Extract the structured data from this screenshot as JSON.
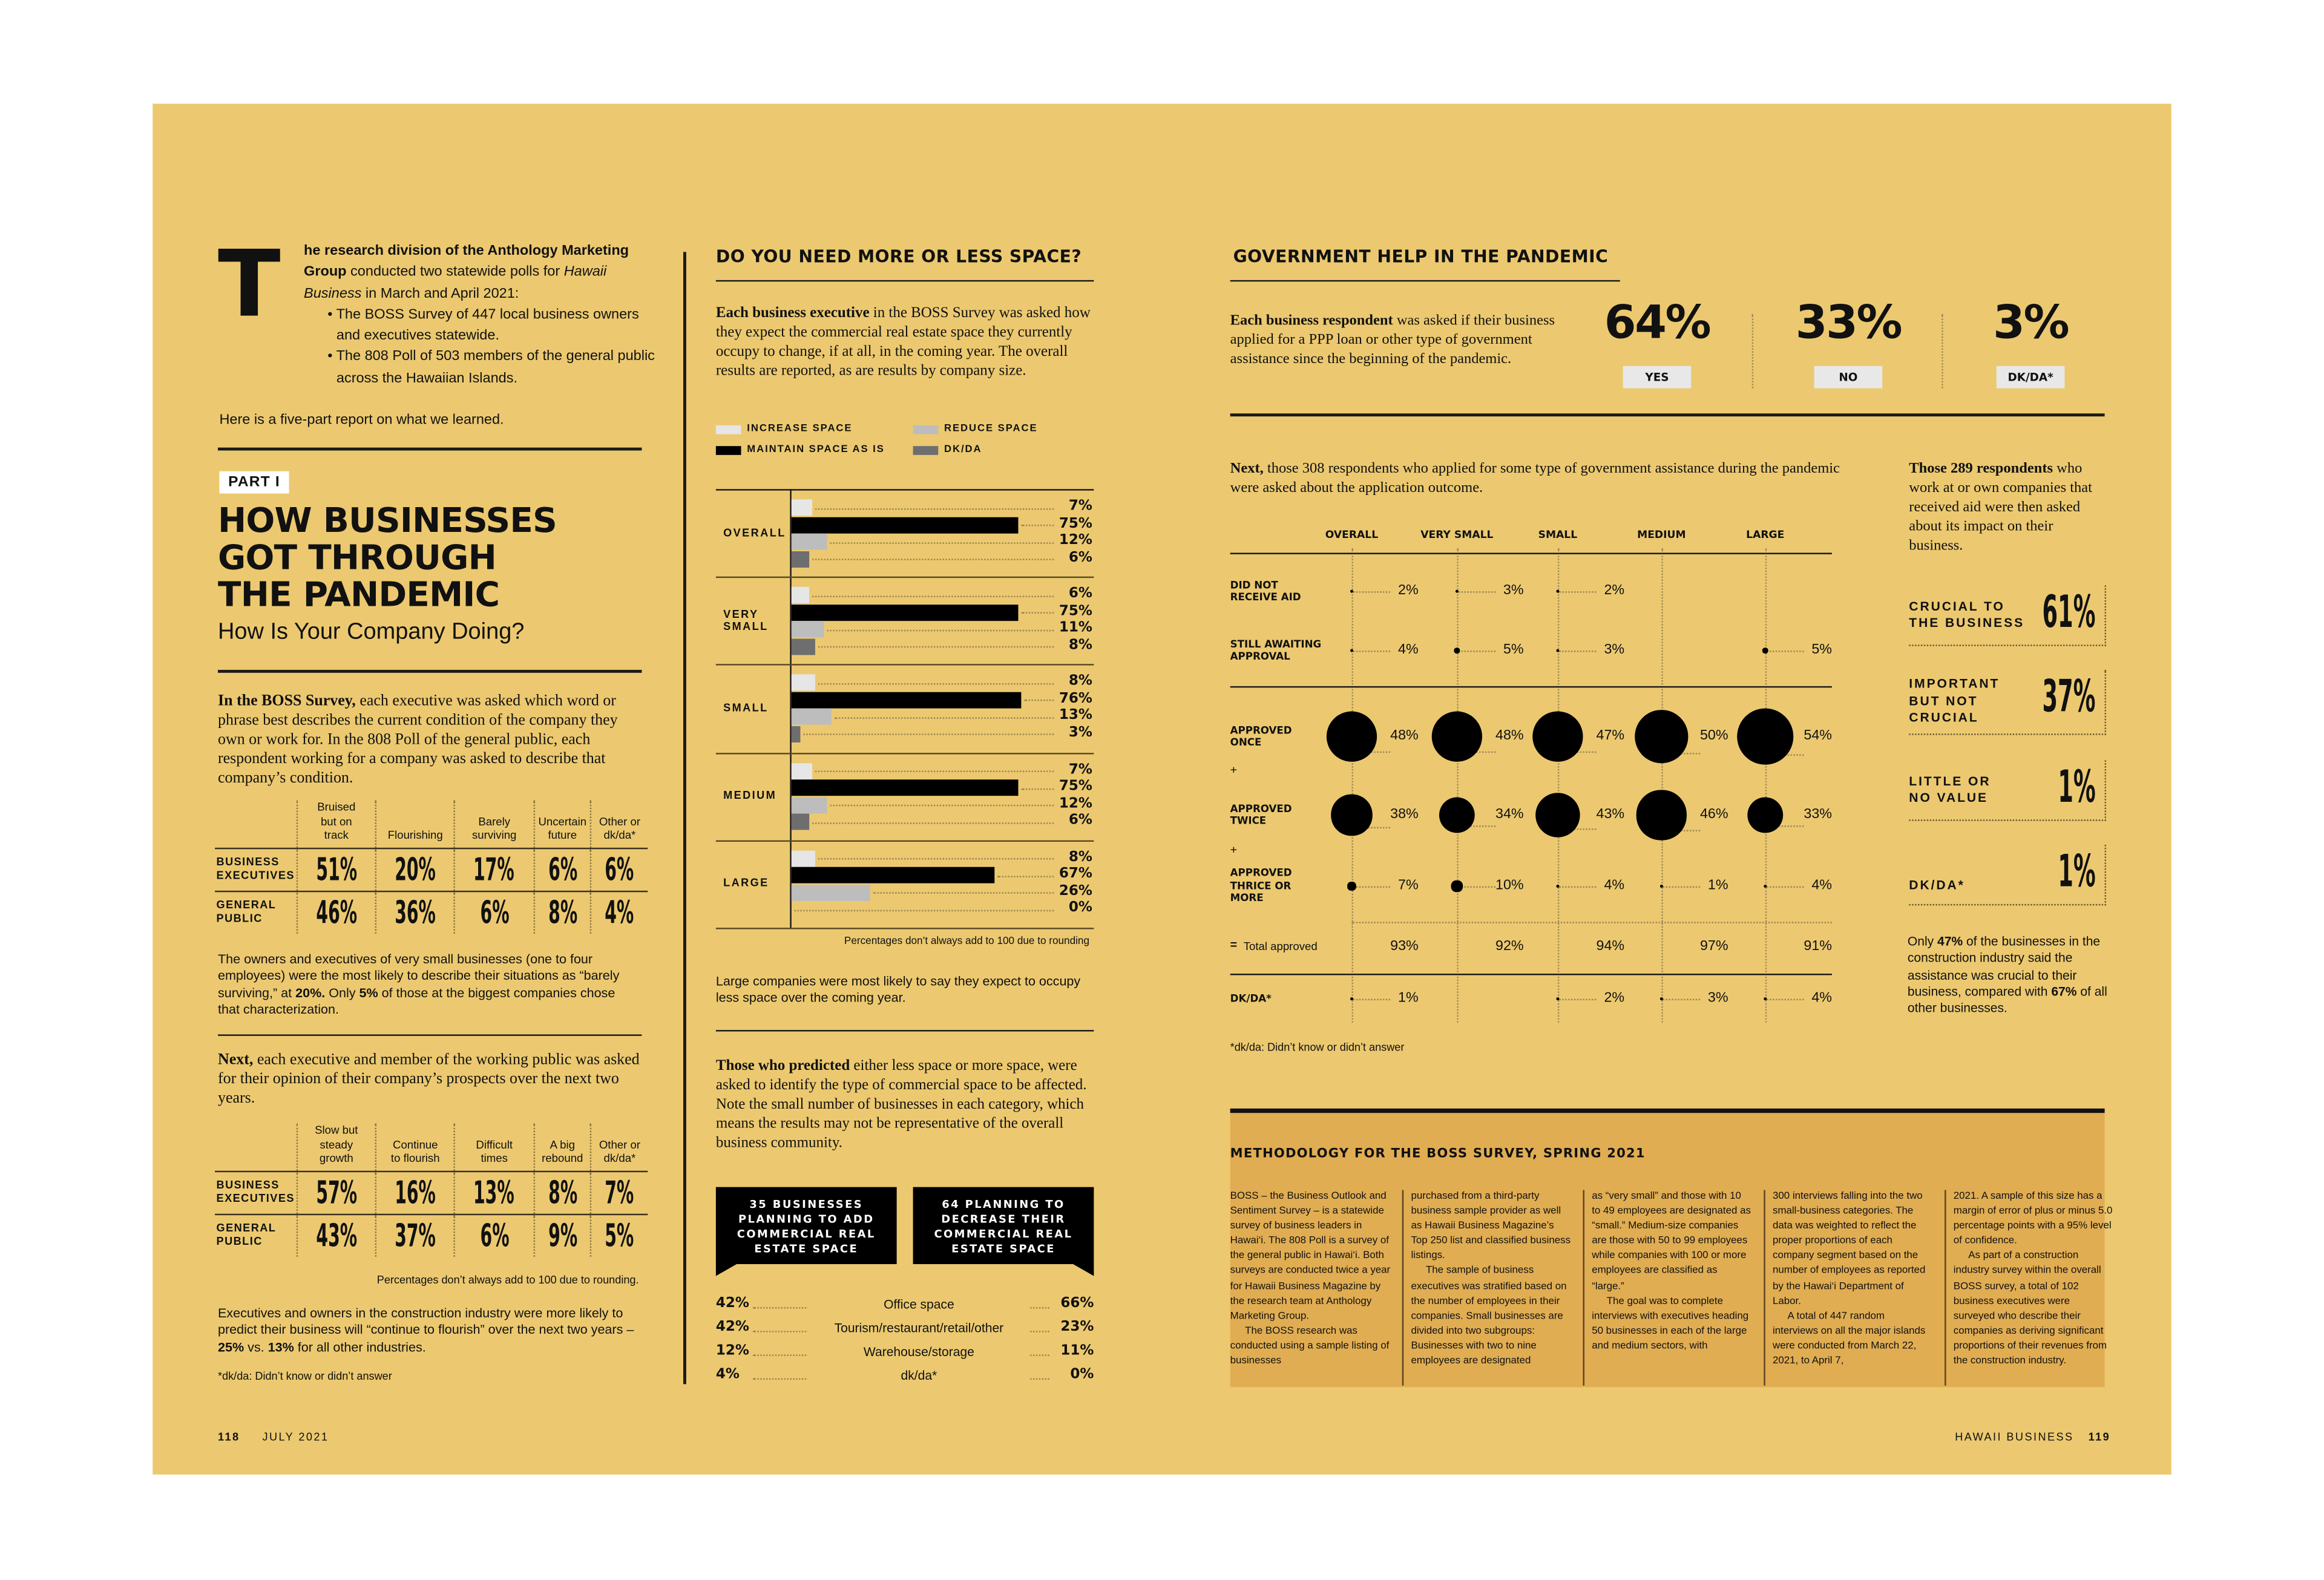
{
  "page": {
    "left_folio": "118",
    "left_date": "JULY 2021",
    "right_brand": "HAWAII BUSINESS",
    "right_folio": "119"
  },
  "colors": {
    "background": "#ECC970",
    "methodology_box": "#E1AD52",
    "ink": "#111111",
    "increase": "#E6E6E6",
    "maintain": "#000000",
    "reduce": "#BDBDBD",
    "dkda": "#6E6E6E"
  },
  "intro": {
    "dropcap": "T",
    "segments": [
      {
        "t": "he research division of the Anthology Marketing Group",
        "s": "b"
      },
      {
        "t": " conducted two statewide polls for "
      },
      {
        "t": "Hawaii Business",
        "s": "i"
      },
      {
        "t": " in March and April 2021:"
      }
    ],
    "bullets": [
      "The BOSS Survey of 447 local business owners and executives statewide.",
      "The 808 Poll of 503 members of the general public across the Hawaiian Islands."
    ],
    "outro": "Here is a five-part report on what we learned."
  },
  "part": {
    "badge": "PART I",
    "title_lines": [
      "HOW BUSINESSES",
      "GOT THROUGH",
      "THE PANDEMIC"
    ],
    "subtitle": "How Is Your Company Doing?"
  },
  "condition": {
    "intro": [
      {
        "t": "In the BOSS Survey,",
        "s": "b"
      },
      {
        "t": " each executive was asked which word or phrase best describes the current condition of the company they own or work for. In the 808 Poll of the general public, each respondent working for a company was asked to describe that company’s condition."
      }
    ],
    "table": {
      "columns": [
        "Bruised\nbut on\ntrack",
        "Flourishing",
        "Barely\nsurviving",
        "Uncertain\nfuture",
        "Other or\ndk/da*"
      ],
      "rows": [
        {
          "label": "BUSINESS\nEXECUTIVES",
          "values": [
            "51%",
            "20%",
            "17%",
            "6%",
            "6%"
          ]
        },
        {
          "label": "GENERAL\nPUBLIC",
          "values": [
            "46%",
            "36%",
            "6%",
            "8%",
            "4%"
          ]
        }
      ]
    },
    "note": [
      {
        "t": "The owners and executives of very small businesses (one to four employees) were the most likely to describe their situations as “barely surviving,” at "
      },
      {
        "t": "20%.",
        "s": "b"
      },
      {
        "t": " Only "
      },
      {
        "t": "5%",
        "s": "b"
      },
      {
        "t": " of those at the biggest companies chose that characterization."
      }
    ]
  },
  "prospects": {
    "intro": [
      {
        "t": "Next,",
        "s": "b"
      },
      {
        "t": " each executive and member of the working public was asked for their opinion of their company’s prospects over the next two years."
      }
    ],
    "table": {
      "columns": [
        "Slow but\nsteady\ngrowth",
        "Continue\nto flourish",
        "Difficult\ntimes",
        "A big\nrebound",
        "Other or\ndk/da*"
      ],
      "rows": [
        {
          "label": "BUSINESS\nEXECUTIVES",
          "values": [
            "57%",
            "16%",
            "13%",
            "8%",
            "7%"
          ]
        },
        {
          "label": "GENERAL\nPUBLIC",
          "values": [
            "43%",
            "37%",
            "6%",
            "9%",
            "5%"
          ]
        }
      ]
    },
    "rounding_note": "Percentages don’t always add to 100 due to rounding.",
    "note": [
      {
        "t": "Executives and owners in the construction industry were more likely to predict their business will “continue to flourish” over the next two years – "
      },
      {
        "t": "25%",
        "s": "b"
      },
      {
        "t": " vs. "
      },
      {
        "t": "13%",
        "s": "b"
      },
      {
        "t": " for all other industries."
      }
    ],
    "footnote": "*dk/da: Didn’t know or didn’t answer"
  },
  "space": {
    "title": "DO YOU NEED MORE OR LESS SPACE?",
    "intro": [
      {
        "t": "Each business executive",
        "s": "b"
      },
      {
        "t": " in the BOSS Survey was asked how they expect the commercial real estate space they currently occupy to change, if at all, in the coming year. The overall results are reported, as are results by company size."
      }
    ],
    "rounding_note": "Percentages don’t always add to 100 due to rounding",
    "takeaway": "Large companies were most likely to say they expect to occupy less space over the coming year.",
    "followup": [
      {
        "t": "Those who predicted",
        "s": "b"
      },
      {
        "t": " either less space or more space, were asked to identify the type of commercial space to be affected. Note the small number of businesses in each category, which means the results may not be representative of the overall business community."
      }
    ],
    "add_box": "35 BUSINESSES\nPLANNING TO ADD\nCOMMERCIAL REAL\nESTATE SPACE",
    "decrease_box": "64 PLANNING TO\nDECREASE THEIR\nCOMMERCIAL REAL\nESTATE SPACE",
    "types": [
      {
        "add": "42%",
        "label": "Office space",
        "decrease": "66%"
      },
      {
        "add": "42%",
        "label": "Tourism/restaurant/retail/other",
        "decrease": "23%"
      },
      {
        "add": "12%",
        "label": "Warehouse/storage",
        "decrease": "11%"
      },
      {
        "add": "4%",
        "label": "dk/da*",
        "decrease": "0%"
      }
    ]
  },
  "gov": {
    "title": "GOVERNMENT HELP IN THE PANDEMIC",
    "intro": [
      {
        "t": "Each business respondent",
        "s": "b"
      },
      {
        "t": " was asked if their business applied for a PPP loan or other type of government assistance since the beginning of the pandemic."
      }
    ],
    "answers": [
      {
        "value": "64%",
        "label": "YES"
      },
      {
        "value": "33%",
        "label": "NO"
      },
      {
        "value": "3%",
        "label": "DK/DA*"
      }
    ],
    "outcome_intro": [
      {
        "t": "Next,",
        "s": "b"
      },
      {
        "t": " those 308 respondents who applied for some type of government assistance during the pandemic were asked about the application outcome."
      }
    ],
    "plus": "+",
    "equals": "=",
    "footnote": "*dk/da: Didn’t know or didn’t answer"
  },
  "impact": {
    "intro": [
      {
        "t": "Those 289 respondents",
        "s": "b"
      },
      {
        "t": " who work at or own companies that received aid were then asked about its impact on their business."
      }
    ],
    "items": [
      {
        "label": "CRUCIAL TO\nTHE BUSINESS",
        "value": "61%"
      },
      {
        "label": "IMPORTANT\nBUT NOT\nCRUCIAL",
        "value": "37%"
      },
      {
        "label": "LITTLE OR\nNO VALUE",
        "value": "1%"
      },
      {
        "label": "DK/DA*",
        "value": "1%"
      }
    ],
    "note": [
      {
        "t": "Only "
      },
      {
        "t": "47%",
        "s": "b"
      },
      {
        "t": " of the businesses in the construction industry said the assistance was crucial to their business, compared with "
      },
      {
        "t": "67%",
        "s": "b"
      },
      {
        "t": " of all other businesses."
      }
    ]
  },
  "methodology": {
    "title": "METHODOLOGY FOR THE BOSS SURVEY, SPRING 2021",
    "columns": [
      [
        "BOSS – the Business Outlook and Sentiment Survey – is a statewide survey of business leaders in Hawai‘i. The 808 Poll is a survey of the general public in Hawai‘i. Both surveys are conducted twice a year for Hawaii Business Magazine by the research team at Anthology Marketing Group.",
        "The BOSS research was conducted using a sample listing of businesses"
      ],
      [
        "purchased from a third-party business sample provider as well as Hawaii Business Magazine’s Top 250 list and classified business listings.",
        "The sample of business executives was stratified based on the number of employees in their companies. Small businesses are divided into two subgroups: Businesses with two to nine employees are designated"
      ],
      [
        "as “very small” and those with 10 to 49 employees are designated as “small.” Medium-size companies are those with 50 to 99 employees while companies with 100 or more employees are classified as “large.”",
        "The goal was to complete interviews with executives heading 50 businesses in each of the large and medium sectors, with"
      ],
      [
        "300 interviews falling into the two small-business categories. The data was weighted to reflect the proper proportions of each company segment based on the number of employees as reported by the Hawai‘i Department of Labor.",
        "A total of 447 random interviews on all the major islands were conducted from March 22, 2021, to April 7,"
      ],
      [
        "2021. A sample of this size has a margin of error of plus or minus 5.0 percentage points with a 95% level of confidence.",
        "As part of a construction industry survey within the overall BOSS survey, a total of 102 business executives were surveyed who describe their companies as deriving significant proportions of their revenues from the construction industry."
      ]
    ]
  },
  "chart_data": [
    {
      "type": "bar",
      "orientation": "horizontal",
      "title": "DO YOU NEED MORE OR LESS SPACE?",
      "legend_position": "top",
      "categories": [
        "OVERALL",
        "VERY\nSMALL",
        "SMALL",
        "MEDIUM",
        "LARGE"
      ],
      "series": [
        {
          "name": "INCREASE SPACE",
          "color": "#E6E6E6",
          "values": [
            7,
            6,
            8,
            7,
            8
          ]
        },
        {
          "name": "MAINTAIN SPACE AS IS",
          "color": "#000000",
          "values": [
            75,
            75,
            76,
            75,
            67
          ]
        },
        {
          "name": "REDUCE SPACE",
          "color": "#BDBDBD",
          "values": [
            12,
            11,
            13,
            12,
            26
          ]
        },
        {
          "name": "DK/DA",
          "color": "#6E6E6E",
          "values": [
            6,
            8,
            3,
            6,
            0
          ]
        }
      ],
      "unit": "%"
    },
    {
      "type": "bubble-table",
      "columns": [
        "OVERALL",
        "VERY SMALL",
        "SMALL",
        "MEDIUM",
        "LARGE"
      ],
      "rows": [
        {
          "label": "DID NOT\nRECEIVE AID",
          "values": [
            2,
            3,
            2,
            null,
            null
          ]
        },
        {
          "label": "STILL AWAITING\nAPPROVAL",
          "values": [
            4,
            5,
            3,
            null,
            5
          ]
        },
        {
          "label": "APPROVED\nONCE",
          "values": [
            48,
            48,
            47,
            50,
            54
          ]
        },
        {
          "label": "APPROVED\nTWICE",
          "values": [
            38,
            34,
            43,
            46,
            33
          ]
        },
        {
          "label": "APPROVED\nTHRICE OR\nMORE",
          "values": [
            7,
            10,
            4,
            1,
            4
          ]
        }
      ],
      "total": {
        "label": "Total approved",
        "values": [
          93,
          92,
          94,
          97,
          91
        ]
      },
      "dkda": {
        "label": "DK/DA*",
        "values": [
          1,
          null,
          2,
          3,
          4
        ]
      },
      "unit": "%"
    }
  ]
}
